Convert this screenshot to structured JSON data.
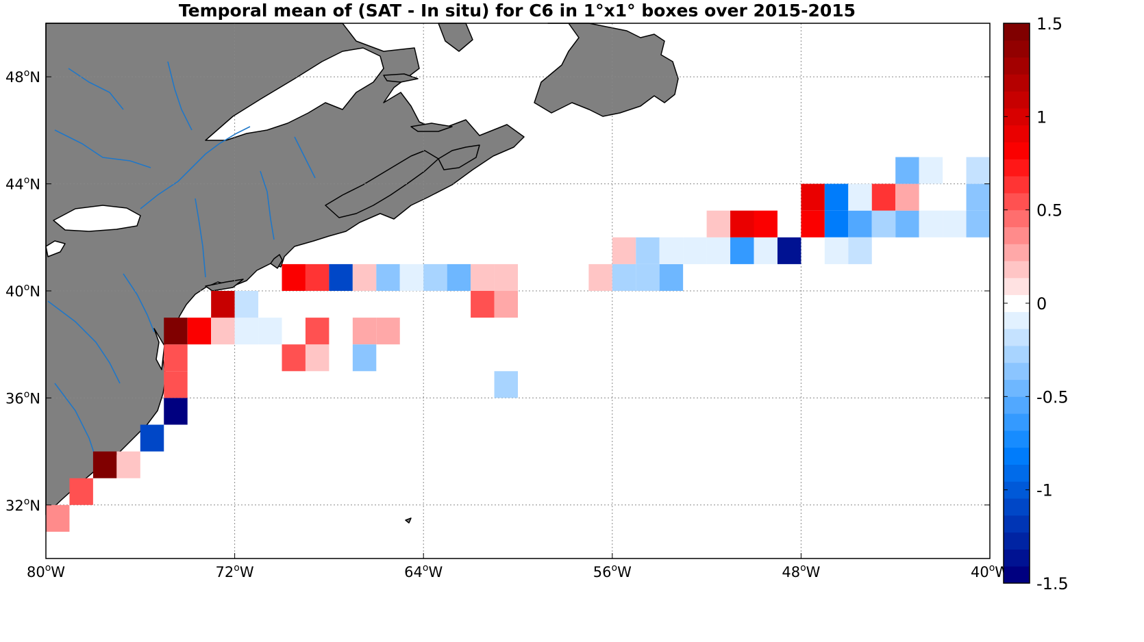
{
  "title": "Temporal mean of (SAT - In situ) for C6 in 1°x1° boxes over 2015-2015",
  "map": {
    "lon_range": [
      -80,
      -40
    ],
    "lat_range": [
      30,
      50
    ],
    "x_ticks": [
      {
        "value": -80,
        "deg": "80",
        "hemi": "W"
      },
      {
        "value": -72,
        "deg": "72",
        "hemi": "W"
      },
      {
        "value": -64,
        "deg": "64",
        "hemi": "W"
      },
      {
        "value": -56,
        "deg": "56",
        "hemi": "W"
      },
      {
        "value": -48,
        "deg": "48",
        "hemi": "W"
      },
      {
        "value": -40,
        "deg": "40",
        "hemi": "W"
      }
    ],
    "y_ticks": [
      {
        "value": 32,
        "deg": "32",
        "hemi": "N"
      },
      {
        "value": 36,
        "deg": "36",
        "hemi": "N"
      },
      {
        "value": 40,
        "deg": "40",
        "hemi": "N"
      },
      {
        "value": 44,
        "deg": "44",
        "hemi": "N"
      },
      {
        "value": 48,
        "deg": "48",
        "hemi": "N"
      }
    ],
    "grid": "dotted",
    "land_color": "#808080",
    "river_color": "#1f77c8",
    "ocean_color": "#ffffff"
  },
  "colorbar": {
    "min": -1.5,
    "max": 1.5,
    "levels": 33,
    "ticks": [
      {
        "value": 1.5,
        "label": "1.5"
      },
      {
        "value": 1,
        "label": "1"
      },
      {
        "value": 0.5,
        "label": "0.5"
      },
      {
        "value": 0,
        "label": "0"
      },
      {
        "value": -0.5,
        "label": "-0.5"
      },
      {
        "value": -1,
        "label": "-1"
      },
      {
        "value": -1.5,
        "label": "-1.5"
      }
    ]
  },
  "chart_data": {
    "type": "heatmap",
    "cell_size_deg": 1,
    "value_range": [
      -1.5,
      1.5
    ],
    "note_units": "mean (SAT - In situ) per 1x1 degree box, box given by lon/lat of its lower-left corner",
    "cells": [
      {
        "lon": -80,
        "lat": 31,
        "value": 0.4
      },
      {
        "lon": -79,
        "lat": 32,
        "value": 0.5
      },
      {
        "lon": -78,
        "lat": 33,
        "value": 1.5
      },
      {
        "lon": -77,
        "lat": 33,
        "value": 0.15
      },
      {
        "lon": -76,
        "lat": 34,
        "value": -1.1
      },
      {
        "lon": -75,
        "lat": 35,
        "value": -1.45
      },
      {
        "lon": -75,
        "lat": 36,
        "value": 0.55
      },
      {
        "lon": -75,
        "lat": 37,
        "value": 0.55
      },
      {
        "lon": -75,
        "lat": 38,
        "value": 1.45
      },
      {
        "lon": -74,
        "lat": 38,
        "value": 0.85
      },
      {
        "lon": -73,
        "lat": 38,
        "value": 0.2
      },
      {
        "lon": -72,
        "lat": 38,
        "value": -0.1
      },
      {
        "lon": -71,
        "lat": 38,
        "value": -0.1
      },
      {
        "lon": -73,
        "lat": 39,
        "value": 1.1
      },
      {
        "lon": -72,
        "lat": 39,
        "value": -0.2
      },
      {
        "lon": -70,
        "lat": 37,
        "value": 0.5
      },
      {
        "lon": -69,
        "lat": 37,
        "value": 0.15
      },
      {
        "lon": -69,
        "lat": 38,
        "value": 0.5
      },
      {
        "lon": -67,
        "lat": 38,
        "value": 0.25
      },
      {
        "lon": -66,
        "lat": 38,
        "value": 0.25
      },
      {
        "lon": -67,
        "lat": 37,
        "value": -0.35
      },
      {
        "lon": -61,
        "lat": 36,
        "value": -0.25
      },
      {
        "lon": -62,
        "lat": 39,
        "value": 0.5
      },
      {
        "lon": -61,
        "lat": 39,
        "value": 0.3
      },
      {
        "lon": -70,
        "lat": 40,
        "value": 0.85
      },
      {
        "lon": -69,
        "lat": 40,
        "value": 0.6
      },
      {
        "lon": -68,
        "lat": 40,
        "value": -1.1
      },
      {
        "lon": -67,
        "lat": 40,
        "value": 0.15
      },
      {
        "lon": -66,
        "lat": 40,
        "value": -0.35
      },
      {
        "lon": -65,
        "lat": 40,
        "value": -0.1
      },
      {
        "lon": -64,
        "lat": 40,
        "value": -0.25
      },
      {
        "lon": -63,
        "lat": 40,
        "value": -0.5
      },
      {
        "lon": -62,
        "lat": 40,
        "value": 0.15
      },
      {
        "lon": -61,
        "lat": 40,
        "value": 0.15
      },
      {
        "lon": -57,
        "lat": 40,
        "value": 0.15
      },
      {
        "lon": -56,
        "lat": 40,
        "value": -0.25
      },
      {
        "lon": -55,
        "lat": 40,
        "value": -0.25
      },
      {
        "lon": -54,
        "lat": 40,
        "value": -0.5
      },
      {
        "lon": -56,
        "lat": 41,
        "value": 0.15
      },
      {
        "lon": -55,
        "lat": 41,
        "value": -0.25
      },
      {
        "lon": -54,
        "lat": 41,
        "value": -0.1
      },
      {
        "lon": -53,
        "lat": 41,
        "value": -0.1
      },
      {
        "lon": -52,
        "lat": 41,
        "value": -0.1
      },
      {
        "lon": -51,
        "lat": 41,
        "value": -0.6
      },
      {
        "lon": -50,
        "lat": 41,
        "value": -0.1
      },
      {
        "lon": -49,
        "lat": 41,
        "value": -1.4
      },
      {
        "lon": -52,
        "lat": 42,
        "value": 0.15
      },
      {
        "lon": -51,
        "lat": 42,
        "value": 0.9
      },
      {
        "lon": -50,
        "lat": 42,
        "value": 0.85
      },
      {
        "lon": -48,
        "lat": 42,
        "value": 0.8
      },
      {
        "lon": -47,
        "lat": 42,
        "value": -0.8
      },
      {
        "lon": -46,
        "lat": 42,
        "value": -0.55
      },
      {
        "lon": -45,
        "lat": 42,
        "value": -0.3
      },
      {
        "lon": -44,
        "lat": 42,
        "value": -0.45
      },
      {
        "lon": -43,
        "lat": 42,
        "value": -0.1
      },
      {
        "lon": -42,
        "lat": 42,
        "value": -0.1
      },
      {
        "lon": -41,
        "lat": 42,
        "value": -0.35
      },
      {
        "lon": -47,
        "lat": 41,
        "value": -0.1
      },
      {
        "lon": -46,
        "lat": 41,
        "value": -0.2
      },
      {
        "lon": -48,
        "lat": 43,
        "value": 0.9
      },
      {
        "lon": -47,
        "lat": 43,
        "value": -0.8
      },
      {
        "lon": -46,
        "lat": 43,
        "value": -0.1
      },
      {
        "lon": -45,
        "lat": 43,
        "value": 0.6
      },
      {
        "lon": -44,
        "lat": 43,
        "value": 0.25
      },
      {
        "lon": -41,
        "lat": 43,
        "value": -0.35
      },
      {
        "lon": -44,
        "lat": 44,
        "value": -0.45
      },
      {
        "lon": -43,
        "lat": 44,
        "value": -0.1
      },
      {
        "lon": -41,
        "lat": 44,
        "value": -0.15
      }
    ]
  }
}
